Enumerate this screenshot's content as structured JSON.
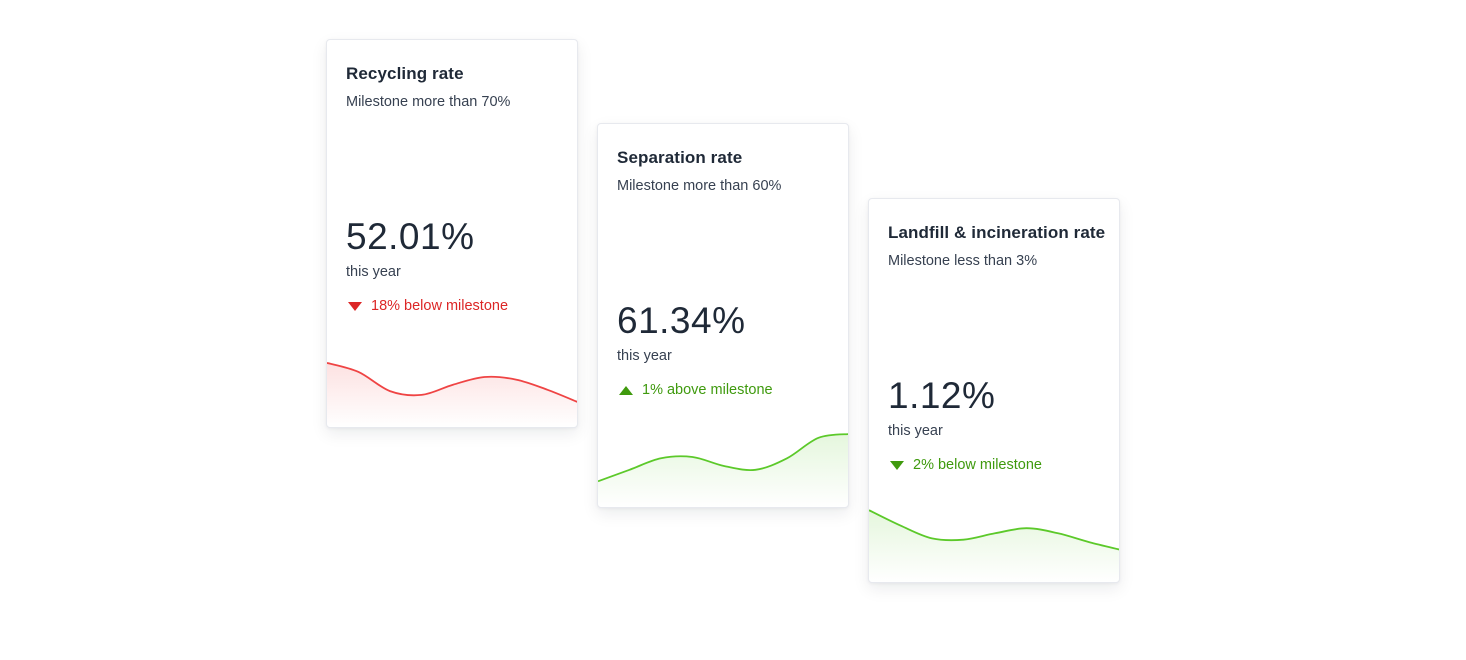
{
  "colors": {
    "red": "#dc2626",
    "green": "#3f9a0e",
    "red_line": "#ef4444",
    "green_line": "#5cc92a"
  },
  "cards": [
    {
      "title": "Recycling rate",
      "subtitle": "Milestone more than 70%",
      "value": "52.01%",
      "period": "this year",
      "status": "18% below milestone",
      "status_icon": "triangle-down-icon",
      "status_tone": "red",
      "trend": [
        0.72,
        0.58,
        0.28,
        0.22,
        0.38,
        0.5,
        0.46,
        0.3,
        0.1
      ]
    },
    {
      "title": "Separation rate",
      "subtitle": "Milestone more than 60%",
      "value": "61.34%",
      "period": "this year",
      "status": "1% above milestone",
      "status_icon": "triangle-up-icon",
      "status_tone": "green",
      "trend": [
        0.12,
        0.3,
        0.48,
        0.5,
        0.36,
        0.3,
        0.48,
        0.8,
        0.86
      ]
    },
    {
      "title": "Landfill & incineration rate",
      "subtitle": "Milestone less than 3%",
      "value": "1.12%",
      "period": "this year",
      "status": "2% below milestone",
      "status_icon": "triangle-down-icon",
      "status_tone": "green",
      "trend": [
        0.84,
        0.6,
        0.4,
        0.38,
        0.48,
        0.56,
        0.48,
        0.34,
        0.22
      ]
    }
  ]
}
